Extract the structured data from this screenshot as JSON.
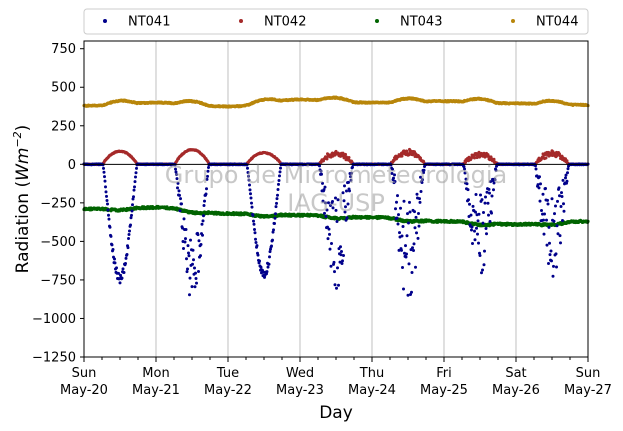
{
  "chart_data": {
    "type": "scatter",
    "xlabel": "Day",
    "ylabel_prefix": "Radiation (",
    "ylabel_unit_base": "Wm",
    "ylabel_unit_exp": "−2",
    "ylabel_suffix": ")",
    "ylim": [
      -1250,
      800
    ],
    "xlim": [
      "2018-05-20",
      "2018-05-27"
    ],
    "yticks": [
      -1250,
      -1000,
      -750,
      -500,
      -250,
      0,
      250,
      500,
      750
    ],
    "ytick_labels": [
      "−1250",
      "−1000",
      "−750",
      "−500",
      "−250",
      "0",
      "250",
      "500",
      "750"
    ],
    "xticks": [
      {
        "day": "Sun",
        "date": "May-20"
      },
      {
        "day": "Mon",
        "date": "May-21"
      },
      {
        "day": "Tue",
        "date": "May-22"
      },
      {
        "day": "Wed",
        "date": "May-23"
      },
      {
        "day": "Thu",
        "date": "May-24"
      },
      {
        "day": "Fri",
        "date": "May-25"
      },
      {
        "day": "Sat",
        "date": "May-26"
      },
      {
        "day": "Sun",
        "date": "May-27"
      }
    ],
    "grid": "vertical",
    "legend_position": "top",
    "watermark_lines": [
      "Grupo de Micrometeorologia",
      "IAG-USP"
    ],
    "series": [
      {
        "name": "NT041",
        "color": "#00008b",
        "daily_min": [
          -770,
          -890,
          -740,
          -810,
          -900,
          -730,
          -760
        ]
      },
      {
        "name": "NT042",
        "color": "#a52a2a",
        "daily_max": [
          85,
          95,
          75,
          85,
          95,
          75,
          85
        ]
      },
      {
        "name": "NT043",
        "color": "#006400",
        "baseline": [
          -290,
          -280,
          -320,
          -330,
          -345,
          -370,
          -390,
          -370
        ]
      },
      {
        "name": "NT044",
        "color": "#b8860b",
        "baseline": [
          380,
          400,
          375,
          420,
          400,
          410,
          395,
          385
        ]
      }
    ]
  }
}
